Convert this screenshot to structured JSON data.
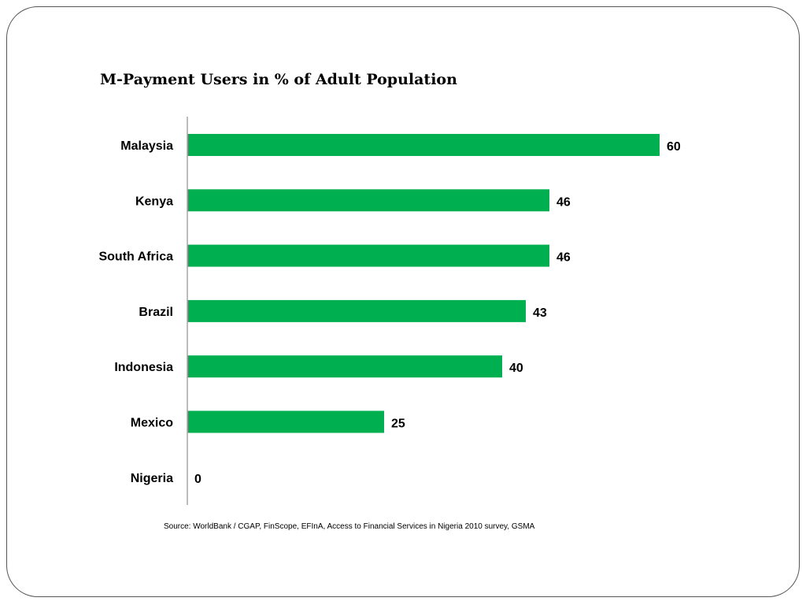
{
  "slide": {
    "source_text": "Source: WorldBank / CGAP, FinScope, EFInA, Access to Financial Services in Nigeria 2010 survey, GSMA"
  },
  "chart_data": {
    "type": "bar",
    "orientation": "horizontal",
    "title": "M-Payment Users in % of Adult Population",
    "categories": [
      "Malaysia",
      "Kenya",
      "South Africa",
      "Brazil",
      "Indonesia",
      "Mexico",
      "Nigeria"
    ],
    "values": [
      60,
      46,
      46,
      43,
      40,
      25,
      0
    ],
    "xlabel": "",
    "ylabel": "",
    "xlim": [
      0,
      60
    ],
    "grid": false,
    "legend": "none",
    "bar_color": "#00B050",
    "axis_color": "#A6A6A6"
  }
}
